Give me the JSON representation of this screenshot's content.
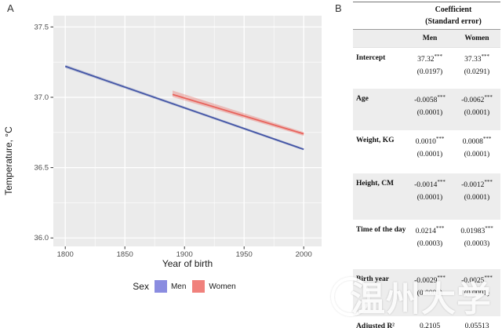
{
  "panelA": {
    "label": "A"
  },
  "chart_data": {
    "type": "line",
    "title": "",
    "xlabel": "Year of birth",
    "ylabel": "Temperature, °C",
    "xlim": [
      1790,
      2015
    ],
    "ylim": [
      35.94,
      37.58
    ],
    "xticks": [
      1800,
      1850,
      1900,
      1950,
      2000
    ],
    "xtick_labels": [
      "1800",
      "1850",
      "1900",
      "1950",
      "2000"
    ],
    "xminor": [
      1825,
      1875,
      1925,
      1975
    ],
    "yticks": [
      36.0,
      36.5,
      37.0,
      37.5
    ],
    "ytick_labels": [
      "36.0",
      "36.5",
      "37.0",
      "37.5"
    ],
    "yminor": [
      36.25,
      36.75,
      37.25
    ],
    "grid": true,
    "panel_bg": "#EBEBEB",
    "grid_color": "#FFFFFF",
    "legend_title": "Sex",
    "legend_position": "bottom",
    "series": [
      {
        "name": "Men",
        "color": "#4456A6",
        "legend_fill": "#8A8CE0",
        "x": [
          1800,
          2000
        ],
        "y": [
          37.22,
          36.63
        ],
        "band": {
          "upper": [
            37.232,
            36.638
          ],
          "lower": [
            37.208,
            36.622
          ],
          "opacity": 0.22
        }
      },
      {
        "name": "Women",
        "color": "#E8635C",
        "legend_fill": "#F0817C",
        "x": [
          1890,
          2000
        ],
        "y": [
          37.02,
          36.74
        ],
        "band": {
          "upper": [
            37.048,
            36.752
          ],
          "lower": [
            37.002,
            36.726
          ],
          "opacity": 0.35
        }
      }
    ]
  },
  "panelB": {
    "label": "B",
    "table": {
      "spanner_line1": "Coefficient",
      "spanner_line2": "(Standard error)",
      "columns": [
        "Men",
        "Women"
      ],
      "shade_color": "#EDEDED",
      "rows": [
        {
          "label": "Intercept",
          "men": "37.32",
          "men_stars": "***",
          "men_se": "(0.0197)",
          "women": "37.33",
          "women_stars": "***",
          "women_se": "(0.0291)",
          "shaded": false
        },
        {
          "label": "Age",
          "men": "-0.0058",
          "men_stars": "***",
          "men_se": "(0.0001)",
          "women": "-0.0062",
          "women_stars": "***",
          "women_se": "(0.0001)",
          "shaded": true
        },
        {
          "label": "Weight, KG",
          "men": "0.0010",
          "men_stars": "***",
          "men_se": "(0.0001)",
          "women": "0.0008",
          "women_stars": "***",
          "women_se": "(0.0001)",
          "shaded": false
        },
        {
          "label": "Height, CM",
          "men": "-0.0014",
          "men_stars": "***",
          "men_se": "(0.0001)",
          "women": "-0.0012",
          "women_stars": "***",
          "women_se": "(0.0001)",
          "shaded": true
        },
        {
          "label": "Time of the day",
          "men": "0.0214",
          "men_stars": "***",
          "men_se": "(0.0003)",
          "women": "0.01983",
          "women_stars": "***",
          "women_se": "(0.0003)",
          "shaded": false
        },
        {
          "label": "Birth year",
          "men": "-0.0029",
          "men_stars": "***",
          "men_se": "(0.0001)",
          "women": "-0.0025",
          "women_stars": "***",
          "women_se": "(0.0001)",
          "shaded": true
        },
        {
          "label": "Adjusted R²",
          "men": "0.2105",
          "men_stars": "",
          "men_se": "",
          "women": "0.05513",
          "women_stars": "",
          "women_se": "",
          "shaded": false
        }
      ]
    }
  },
  "watermark": {
    "text": "温州大学"
  }
}
